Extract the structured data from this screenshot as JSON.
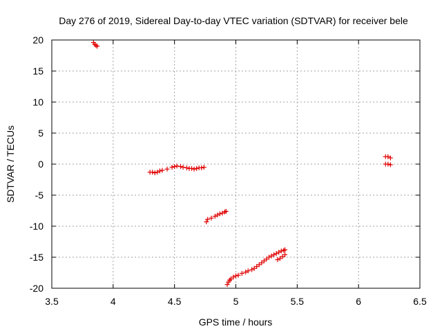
{
  "chart_data": {
    "type": "scatter",
    "title": "Day 276 of 2019, Sidereal Day-to-day VTEC variation (SDTVAR) for receiver bele",
    "xlabel": "GPS time / hours",
    "ylabel": "SDTVAR / TECUs",
    "xlim": [
      3.5,
      6.5
    ],
    "ylim": [
      -20,
      20
    ],
    "xticks": [
      3.5,
      4,
      4.5,
      5,
      5.5,
      6,
      6.5
    ],
    "xtick_labels": [
      "3.5",
      "4",
      "4.5",
      "5",
      "5.5",
      "6",
      "6.5"
    ],
    "yticks": [
      -20,
      -15,
      -10,
      -5,
      0,
      5,
      10,
      15,
      20
    ],
    "ytick_labels": [
      "-20",
      "-15",
      "-10",
      "-5",
      "0",
      "5",
      "10",
      "15",
      "20"
    ],
    "grid": true,
    "marker": "+",
    "color": "#e00000",
    "series": [
      {
        "name": "SDTVAR",
        "x": [
          3.84,
          3.85,
          3.86,
          3.87,
          4.3,
          4.32,
          4.34,
          4.36,
          4.38,
          4.4,
          4.44,
          4.48,
          4.5,
          4.52,
          4.55,
          4.57,
          4.6,
          4.62,
          4.64,
          4.66,
          4.68,
          4.7,
          4.72,
          4.74,
          4.76,
          4.77,
          4.8,
          4.83,
          4.85,
          4.87,
          4.89,
          4.91,
          4.92,
          4.93,
          4.94,
          4.95,
          4.96,
          4.98,
          5.0,
          5.02,
          5.05,
          5.08,
          5.1,
          5.13,
          5.15,
          5.17,
          5.19,
          5.21,
          5.23,
          5.25,
          5.27,
          5.29,
          5.31,
          5.33,
          5.35,
          5.37,
          5.39,
          5.4,
          5.34,
          5.36,
          5.38,
          5.4,
          6.22,
          6.24,
          6.26,
          6.22,
          6.24,
          6.26
        ],
        "y": [
          19.6,
          19.3,
          19.1,
          19.0,
          -1.3,
          -1.3,
          -1.4,
          -1.3,
          -1.1,
          -1.0,
          -0.8,
          -0.5,
          -0.4,
          -0.3,
          -0.4,
          -0.5,
          -0.6,
          -0.7,
          -0.7,
          -0.8,
          -0.7,
          -0.6,
          -0.6,
          -0.5,
          -9.3,
          -8.9,
          -8.7,
          -8.4,
          -8.2,
          -8.0,
          -7.9,
          -7.7,
          -7.6,
          -19.4,
          -19.0,
          -18.7,
          -18.5,
          -18.2,
          -18.0,
          -17.9,
          -17.6,
          -17.4,
          -17.2,
          -17.0,
          -16.8,
          -16.5,
          -16.2,
          -15.9,
          -15.6,
          -15.3,
          -15.0,
          -14.8,
          -14.6,
          -14.4,
          -14.2,
          -14.0,
          -13.9,
          -13.8,
          -15.4,
          -15.2,
          -14.9,
          -14.6,
          1.2,
          1.2,
          1.0,
          0.0,
          0.0,
          -0.1
        ]
      }
    ]
  }
}
